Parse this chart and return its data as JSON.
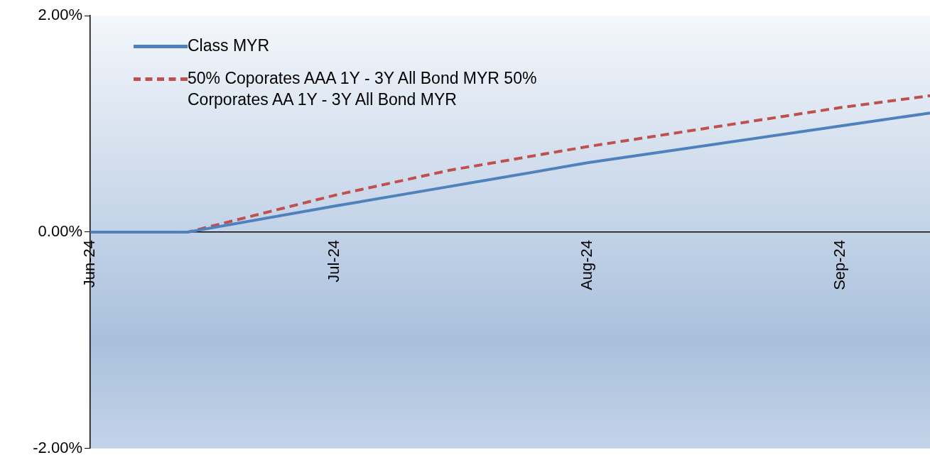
{
  "chart_data": {
    "type": "line",
    "x": [
      "2024-06-01",
      "2024-06-13",
      "2024-07-01",
      "2024-07-15",
      "2024-08-01",
      "2024-09-01",
      "2024-09-12"
    ],
    "series": [
      {
        "name": "Class MYR",
        "color": "#4f81bd",
        "line_style": "solid",
        "values": [
          0,
          0,
          0.24,
          0.42,
          0.64,
          0.98,
          1.1
        ]
      },
      {
        "name": "50% Coporates AAA 1Y - 3Y All Bond MYR 50% Corporates AA 1Y - 3Y All Bond MYR",
        "color": "#c0504d",
        "line_style": "dashed",
        "values": [
          0,
          0,
          0.34,
          0.57,
          0.79,
          1.15,
          1.26
        ]
      }
    ],
    "xlim": [
      "2024-06-01",
      "2024-09-12"
    ],
    "xticks": [
      {
        "value": "2024-06-01",
        "label": "Jun-24"
      },
      {
        "value": "2024-07-01",
        "label": "Jul-24"
      },
      {
        "value": "2024-08-01",
        "label": "Aug-24"
      },
      {
        "value": "2024-09-01",
        "label": "Sep-24"
      }
    ],
    "ylim": [
      -2,
      2
    ],
    "yticks": [
      {
        "value": -2,
        "label": "-2.00%"
      },
      {
        "value": 0,
        "label": "0.00%"
      },
      {
        "value": 2,
        "label": "2.00%"
      }
    ],
    "grid": false,
    "legend": "top left",
    "marker": "none"
  }
}
